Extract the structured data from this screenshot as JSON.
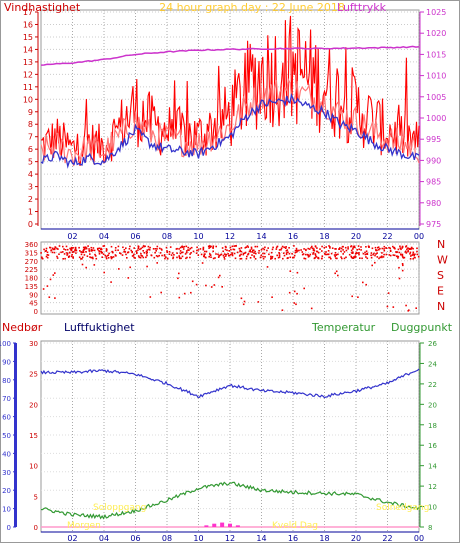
{
  "wind_panel": {
    "title_left": "Vindhastighet",
    "title_center": "24 hour graph day : 22 June 2018",
    "title_right": "Lufttrykk",
    "colors": {
      "border": "#cc0000",
      "gust": "#ff0000",
      "avg": "#ff6666",
      "dir": "#ee0000",
      "pressure": "#cc33cc",
      "title_center": "#ffcc33",
      "axis_left": "#cc0000",
      "axis_right": "#cc33cc",
      "bottom_axis": "#000099"
    }
  },
  "lower_panel": {
    "label_nedbor": "Nedbør",
    "label_luftfuktighet": "Luftfuktighet",
    "label_temperatur": "Temperatur",
    "label_duggpunkt": "Duggpunkt",
    "label_soloppgang": "Soloppgang",
    "label_solnedgang": "Solnedgang",
    "label_morgen": "Morgen",
    "label_kveld": "Kveld Dag",
    "colors": {
      "humidity": "#3333cc",
      "temperature": "#339933",
      "dewpoint": "#339933",
      "rain": "#ff33cc",
      "rain_axis": "#3333cc"
    }
  },
  "chart_data": [
    {
      "type": "line",
      "title": "24 hour graph day : 22 June 2018",
      "ylabel": "Vindhastighet",
      "y2label": "Lufttrykk",
      "ylim": [
        0,
        17
      ],
      "y2lim": [
        975,
        1025
      ],
      "yticks": [
        "0",
        "1",
        "2",
        "3",
        "4",
        "5",
        "6",
        "7",
        "8",
        "9",
        "10",
        "11",
        "12",
        "13",
        "14",
        "15",
        "16",
        "17"
      ],
      "y2ticks": [
        "975",
        "980",
        "985",
        "990",
        "995",
        "1000",
        "1005",
        "1010",
        "1015",
        "1020",
        "1025"
      ],
      "x_ticks": [
        "02",
        "04",
        "06",
        "08",
        "10",
        "12",
        "14",
        "16",
        "18",
        "20",
        "22",
        "00"
      ],
      "series": [
        {
          "name": "Lufttrykk",
          "x": [
            0,
            2,
            4,
            6,
            8,
            10,
            12,
            14,
            16,
            18,
            20,
            22,
            24
          ],
          "values": [
            1012.5,
            1013.0,
            1013.8,
            1015.0,
            1015.6,
            1016.0,
            1016.2,
            1016.3,
            1016.4,
            1016.4,
            1016.5,
            1016.6,
            1016.8
          ]
        },
        {
          "name": "",
          "x": [
            0,
            1,
            2,
            3,
            4,
            5,
            6,
            7,
            8,
            9,
            10,
            11,
            12,
            13,
            14,
            15,
            16,
            17,
            18,
            19,
            20,
            21,
            22,
            23,
            24
          ],
          "values": [
            5.0,
            5.5,
            4.8,
            5.3,
            5.0,
            6.2,
            7.5,
            6.4,
            6.0,
            5.8,
            5.6,
            6.3,
            7.0,
            8.6,
            9.6,
            9.8,
            10.0,
            9.4,
            9.0,
            8.0,
            7.5,
            6.6,
            6.0,
            5.6,
            5.2
          ]
        }
      ]
    },
    {
      "type": "scatter",
      "ylim": [
        0,
        360
      ],
      "yticks": [
        "0",
        "45",
        "90",
        "135",
        "180",
        "225",
        "270",
        "315",
        "360"
      ],
      "ytick_labels": [
        "0",
        "45",
        "90",
        "135",
        "180",
        "225",
        "270",
        "315",
        "360"
      ],
      "compass": [
        "N",
        "W",
        "S",
        "E",
        "N"
      ],
      "x_ticks": [
        "02",
        "04",
        "06",
        "08",
        "10",
        "12",
        "14",
        "16",
        "18",
        "20",
        "22",
        "00"
      ],
      "x": [
        1,
        3,
        5,
        7,
        9,
        11,
        13,
        15,
        17,
        19,
        21,
        23
      ],
      "values": [
        300,
        310,
        305,
        295,
        300,
        320,
        300,
        305,
        300,
        310,
        300,
        305
      ]
    },
    {
      "type": "line",
      "x_ticks": [
        "02",
        "04",
        "06",
        "08",
        "10",
        "12",
        "14",
        "16",
        "18",
        "20",
        "22",
        "00"
      ],
      "axis_nedbor": [
        "0",
        "10",
        "20",
        "30",
        "40",
        "50",
        "60",
        "70",
        "80",
        "90",
        "100"
      ],
      "axis_humidity": [
        "0",
        "5",
        "10",
        "15",
        "20",
        "25",
        "30"
      ],
      "axis_temperature": [
        "8",
        "10",
        "12",
        "14",
        "16",
        "18",
        "20",
        "22",
        "24",
        "26"
      ],
      "series": [
        {
          "name": "Luftfuktighet",
          "x": [
            0,
            2,
            4,
            6,
            8,
            10,
            12,
            14,
            16,
            18,
            20,
            22,
            24
          ],
          "values": [
            84,
            84,
            85,
            83,
            78,
            71,
            77,
            74,
            73,
            71,
            74,
            78,
            86
          ]
        },
        {
          "name": "Temperatur",
          "x": [
            0,
            2,
            4,
            6,
            8,
            10,
            12,
            14,
            16,
            18,
            20,
            22,
            24
          ],
          "values": [
            9.8,
            9.2,
            9.0,
            9.6,
            10.6,
            11.8,
            12.3,
            11.6,
            11.4,
            11.3,
            11.2,
            10.4,
            9.8
          ]
        },
        {
          "name": "Nedbør",
          "x": [
            10.5,
            11.0,
            11.5,
            12.0,
            12.5
          ],
          "values": [
            0.3,
            0.6,
            0.8,
            0.6,
            0.3
          ]
        }
      ]
    }
  ]
}
